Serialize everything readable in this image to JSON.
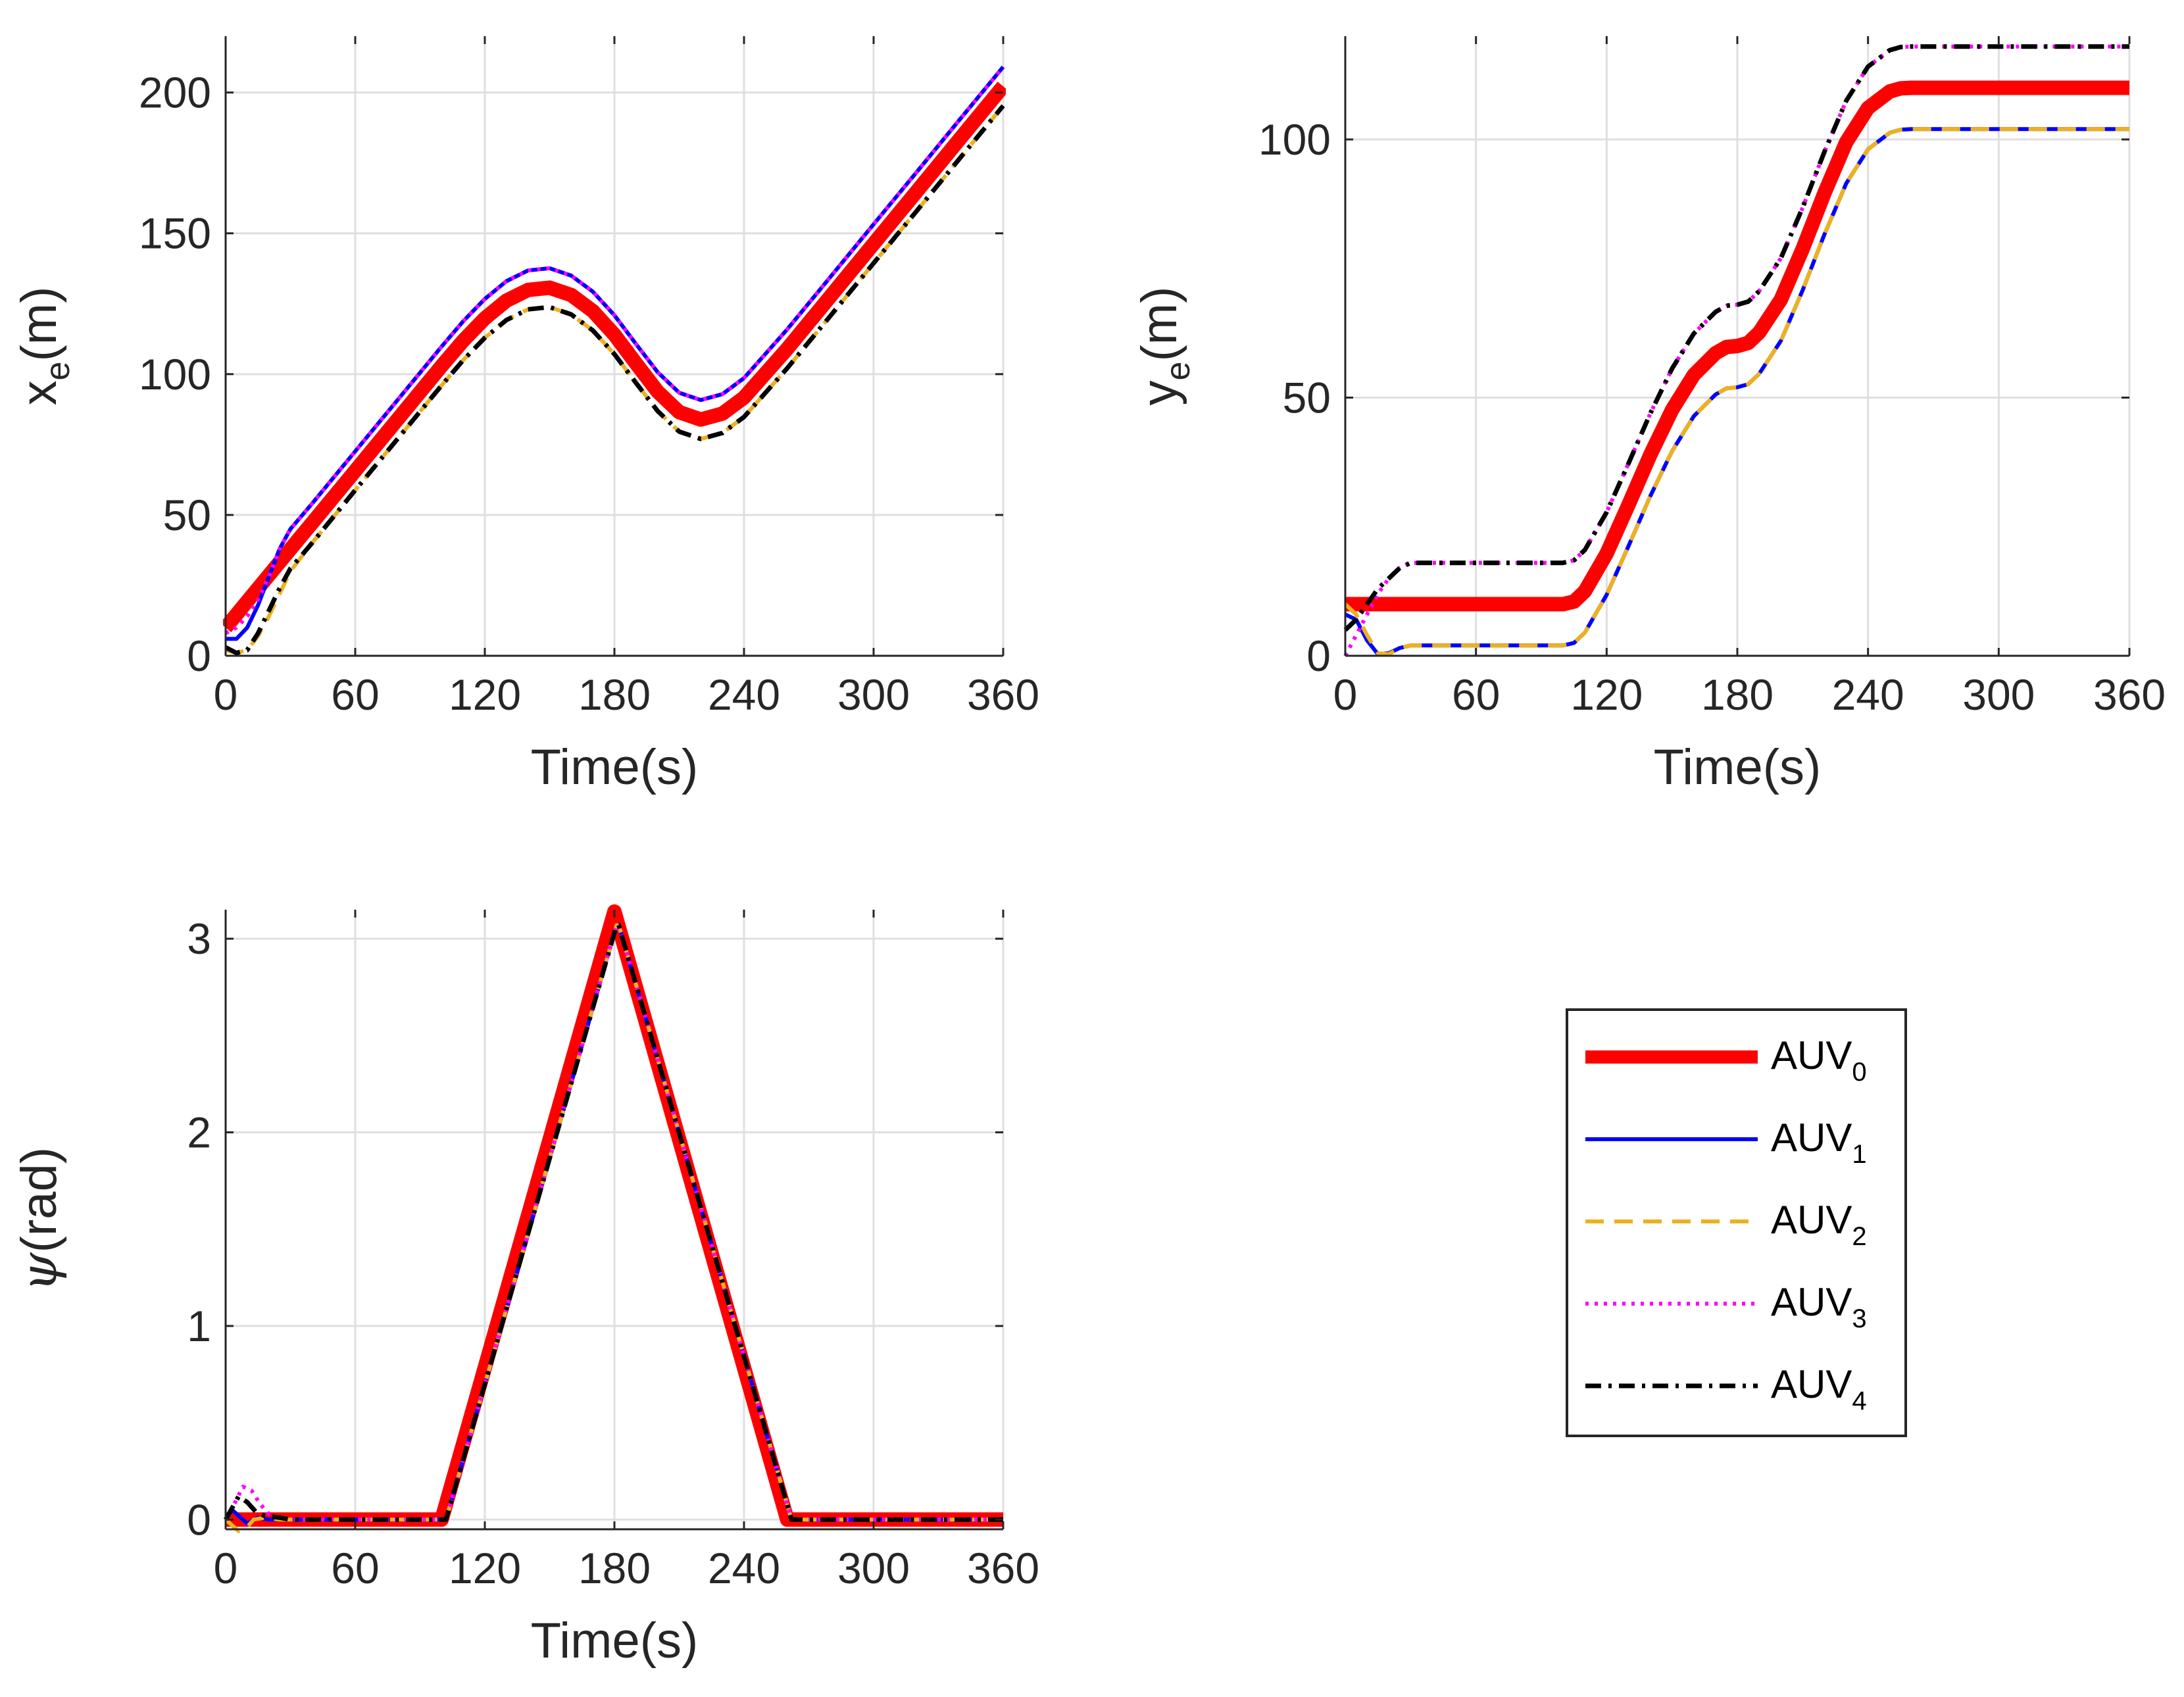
{
  "chart_data": [
    {
      "id": "xe",
      "type": "line",
      "xlabel": "Time(s)",
      "ylabel_main": "x",
      "ylabel_sub": "e",
      "ylabel_unit": "(m)",
      "xlim": [
        0,
        360
      ],
      "ylim": [
        0,
        220
      ],
      "xticks": [
        0,
        60,
        120,
        180,
        240,
        300,
        360
      ],
      "yticks": [
        0,
        50,
        100,
        150,
        200
      ],
      "grid": true,
      "series": [
        {
          "name": "AUV0",
          "x": [
            0,
            10,
            20,
            30,
            40,
            60,
            80,
            100,
            110,
            120,
            130,
            140,
            150,
            160,
            170,
            180,
            190,
            200,
            210,
            220,
            230,
            240,
            260,
            280,
            300,
            320,
            340,
            360
          ],
          "values": [
            10,
            19.3,
            28.6,
            37.9,
            47.1,
            65.7,
            84.3,
            102.9,
            111.9,
            119.8,
            126.1,
            129.9,
            130.7,
            128.1,
            122.4,
            114.0,
            103.8,
            93.8,
            86.5,
            83.9,
            86.0,
            91.7,
            109,
            127.6,
            146.3,
            164.9,
            183.6,
            202.2
          ]
        },
        {
          "name": "AUV1",
          "x": [
            0,
            5,
            10,
            15,
            20,
            25,
            30,
            40,
            60,
            80,
            100,
            110,
            120,
            130,
            140,
            150,
            160,
            170,
            180,
            190,
            200,
            210,
            220,
            230,
            240,
            260,
            280,
            300,
            320,
            340,
            360
          ],
          "values": [
            6,
            6,
            10,
            18,
            28,
            38,
            45,
            54,
            72.6,
            91.2,
            109.8,
            118.8,
            126.7,
            133.0,
            136.8,
            137.6,
            135.0,
            129.3,
            120.9,
            110.7,
            100.7,
            93.4,
            90.8,
            92.9,
            98.6,
            115.9,
            134.5,
            153.2,
            171.8,
            190.5,
            209.1
          ]
        },
        {
          "name": "AUV2",
          "x": [
            0,
            5,
            10,
            15,
            20,
            25,
            30,
            40,
            60,
            80,
            100,
            110,
            120,
            130,
            140,
            150,
            160,
            170,
            180,
            190,
            200,
            210,
            220,
            230,
            240,
            260,
            280,
            300,
            320,
            340,
            360
          ],
          "values": [
            2,
            1,
            2,
            7,
            14,
            22,
            30,
            40,
            58.8,
            77.4,
            96.0,
            105.0,
            112.9,
            119.2,
            123.0,
            123.8,
            121.2,
            115.5,
            107.1,
            96.9,
            86.9,
            79.6,
            77.0,
            79.1,
            84.8,
            102.1,
            120.7,
            139.4,
            158.0,
            176.7,
            195.3
          ]
        },
        {
          "name": "AUV3",
          "x": [
            0,
            5,
            10,
            15,
            20,
            25,
            30,
            40,
            60,
            80,
            100,
            110,
            120,
            130,
            140,
            150,
            160,
            170,
            180,
            190,
            200,
            210,
            220,
            230,
            240,
            260,
            280,
            300,
            320,
            340,
            360
          ],
          "values": [
            8,
            10,
            14,
            20,
            28,
            38,
            45,
            54,
            72.6,
            91.2,
            109.8,
            118.8,
            126.7,
            133.0,
            136.8,
            137.6,
            135.0,
            129.3,
            120.9,
            110.7,
            100.7,
            93.4,
            90.8,
            92.9,
            98.6,
            115.9,
            134.5,
            153.2,
            171.8,
            190.5,
            209.1
          ]
        },
        {
          "name": "AUV4",
          "x": [
            0,
            5,
            10,
            15,
            20,
            25,
            30,
            40,
            60,
            80,
            100,
            110,
            120,
            130,
            140,
            150,
            160,
            170,
            180,
            190,
            200,
            210,
            220,
            230,
            240,
            260,
            280,
            300,
            320,
            340,
            360
          ],
          "values": [
            3,
            1,
            2,
            8,
            16,
            24,
            31,
            40,
            58.8,
            77.4,
            96.0,
            105.0,
            112.9,
            119.2,
            123.0,
            123.8,
            121.2,
            115.5,
            107.1,
            96.9,
            86.9,
            79.6,
            77.0,
            79.1,
            84.8,
            102.1,
            120.7,
            139.4,
            158.0,
            176.7,
            195.3
          ]
        }
      ]
    },
    {
      "id": "ye",
      "type": "line",
      "xlabel": "Time(s)",
      "ylabel_main": "y",
      "ylabel_sub": "e",
      "ylabel_unit": "(m)",
      "xlim": [
        0,
        360
      ],
      "ylim": [
        0,
        120
      ],
      "xticks": [
        0,
        60,
        120,
        180,
        240,
        300,
        360
      ],
      "yticks": [
        0,
        50,
        100
      ],
      "grid": true,
      "series": [
        {
          "name": "AUV0",
          "x": [
            0,
            60,
            100,
            105,
            110,
            120,
            130,
            140,
            150,
            160,
            170,
            175,
            180,
            185,
            190,
            200,
            210,
            220,
            230,
            240,
            250,
            255,
            260,
            300,
            360
          ],
          "values": [
            10,
            10,
            10,
            10.5,
            12.5,
            19.8,
            29.2,
            38.9,
            47.6,
            54.4,
            58.6,
            59.8,
            60.0,
            60.6,
            62.6,
            69.0,
            78.8,
            89.6,
            99.5,
            106.1,
            109.3,
            109.9,
            110,
            110,
            110
          ]
        },
        {
          "name": "AUV1",
          "x": [
            0,
            5,
            10,
            15,
            20,
            25,
            30,
            60,
            100,
            105,
            110,
            120,
            130,
            140,
            150,
            160,
            170,
            175,
            180,
            185,
            190,
            200,
            210,
            220,
            230,
            240,
            250,
            255,
            260,
            300,
            360
          ],
          "values": [
            8,
            7,
            3,
            0.3,
            0.5,
            1.5,
            2,
            2,
            2,
            2.5,
            4.5,
            11.8,
            21.2,
            30.9,
            39.6,
            46.4,
            50.6,
            51.8,
            52.0,
            52.6,
            54.6,
            61.0,
            70.8,
            81.6,
            91.5,
            98.1,
            101.3,
            101.9,
            102,
            102,
            102
          ]
        },
        {
          "name": "AUV2",
          "x": [
            0,
            5,
            10,
            15,
            20,
            25,
            30,
            60,
            100,
            105,
            110,
            120,
            130,
            140,
            150,
            160,
            170,
            175,
            180,
            185,
            190,
            200,
            210,
            220,
            230,
            240,
            250,
            255,
            260,
            300,
            360
          ],
          "values": [
            10,
            8,
            4,
            0.5,
            0.3,
            1.5,
            2,
            2,
            2,
            2.5,
            4.5,
            11.8,
            21.2,
            30.9,
            39.6,
            46.4,
            50.6,
            51.8,
            52.0,
            52.6,
            54.6,
            61.0,
            70.8,
            81.6,
            91.5,
            98.1,
            101.3,
            101.9,
            102,
            102,
            102
          ]
        },
        {
          "name": "AUV3",
          "x": [
            0,
            5,
            10,
            15,
            20,
            25,
            30,
            60,
            100,
            105,
            110,
            120,
            130,
            140,
            150,
            160,
            170,
            175,
            180,
            185,
            190,
            200,
            210,
            220,
            230,
            240,
            250,
            255,
            260,
            300,
            360
          ],
          "values": [
            0,
            4,
            8,
            12,
            15,
            17,
            18,
            18,
            18,
            18.5,
            20.5,
            27.8,
            37.2,
            46.9,
            55.6,
            62.4,
            66.6,
            67.8,
            68.0,
            68.6,
            70.6,
            77.0,
            86.8,
            97.6,
            107.5,
            114.1,
            117.3,
            117.9,
            118,
            118,
            118
          ]
        },
        {
          "name": "AUV4",
          "x": [
            0,
            5,
            10,
            15,
            20,
            25,
            30,
            60,
            100,
            105,
            110,
            120,
            130,
            140,
            150,
            160,
            170,
            175,
            180,
            185,
            190,
            200,
            210,
            220,
            230,
            240,
            250,
            255,
            260,
            300,
            360
          ],
          "values": [
            5,
            7,
            10,
            13,
            15,
            17,
            18,
            18,
            18,
            18.5,
            20.5,
            27.8,
            37.2,
            46.9,
            55.6,
            62.4,
            66.6,
            67.8,
            68.0,
            68.6,
            70.6,
            77.0,
            86.8,
            97.6,
            107.5,
            114.1,
            117.3,
            117.9,
            118,
            118,
            118
          ]
        }
      ]
    },
    {
      "id": "psi",
      "type": "line",
      "xlabel": "Time(s)",
      "ylabel_main": "ψ",
      "ylabel_sub": "",
      "ylabel_unit": "(rad)",
      "xlim": [
        0,
        360
      ],
      "ylim": [
        -0.05,
        3.15
      ],
      "xticks": [
        0,
        60,
        120,
        180,
        240,
        300,
        360
      ],
      "yticks": [
        0,
        1,
        2,
        3
      ],
      "grid": true,
      "series": [
        {
          "name": "AUV0",
          "x": [
            0,
            100,
            180,
            260,
            360
          ],
          "values": [
            0,
            0,
            3.14,
            0,
            0
          ]
        },
        {
          "name": "AUV1",
          "x": [
            0,
            3,
            6,
            10,
            15,
            20,
            30,
            100,
            102,
            181,
            182,
            262,
            264,
            360
          ],
          "values": [
            0,
            0.05,
            0.02,
            -0.02,
            0.01,
            0,
            0,
            0,
            0,
            3.07,
            3.07,
            0,
            0,
            0
          ]
        },
        {
          "name": "AUV2",
          "x": [
            0,
            3,
            6,
            9,
            13,
            18,
            25,
            30,
            100,
            102,
            181,
            182,
            262,
            264,
            360
          ],
          "values": [
            0,
            -0.03,
            -0.06,
            -0.05,
            0.0,
            0.01,
            0,
            0,
            0,
            0,
            3.07,
            3.07,
            0,
            0,
            0
          ]
        },
        {
          "name": "AUV3",
          "x": [
            0,
            4,
            8,
            12,
            16,
            20,
            25,
            30,
            100,
            102,
            181,
            182,
            262,
            264,
            360
          ],
          "values": [
            0,
            0.08,
            0.17,
            0.15,
            0.08,
            0.03,
            0.01,
            0,
            0,
            0,
            3.07,
            3.07,
            0,
            0,
            0
          ]
        },
        {
          "name": "AUV4",
          "x": [
            0,
            3,
            6,
            10,
            14,
            18,
            25,
            30,
            100,
            102,
            181,
            182,
            262,
            264,
            360
          ],
          "values": [
            0,
            0.06,
            0.12,
            0.09,
            0.04,
            0.02,
            0.01,
            0,
            0,
            0,
            3.07,
            3.07,
            0,
            0,
            0
          ]
        }
      ]
    }
  ],
  "legend": {
    "placement": "bottom-right",
    "entries": [
      {
        "main": "AUV",
        "sub": "0",
        "color": "#ff0000",
        "style": "solid-thick"
      },
      {
        "main": "AUV",
        "sub": "1",
        "color": "#0000ff",
        "style": "solid"
      },
      {
        "main": "AUV",
        "sub": "2",
        "color": "#edb120",
        "style": "dashed"
      },
      {
        "main": "AUV",
        "sub": "3",
        "color": "#ff00ff",
        "style": "dotted"
      },
      {
        "main": "AUV",
        "sub": "4",
        "color": "#000000",
        "style": "dashdot"
      }
    ]
  }
}
